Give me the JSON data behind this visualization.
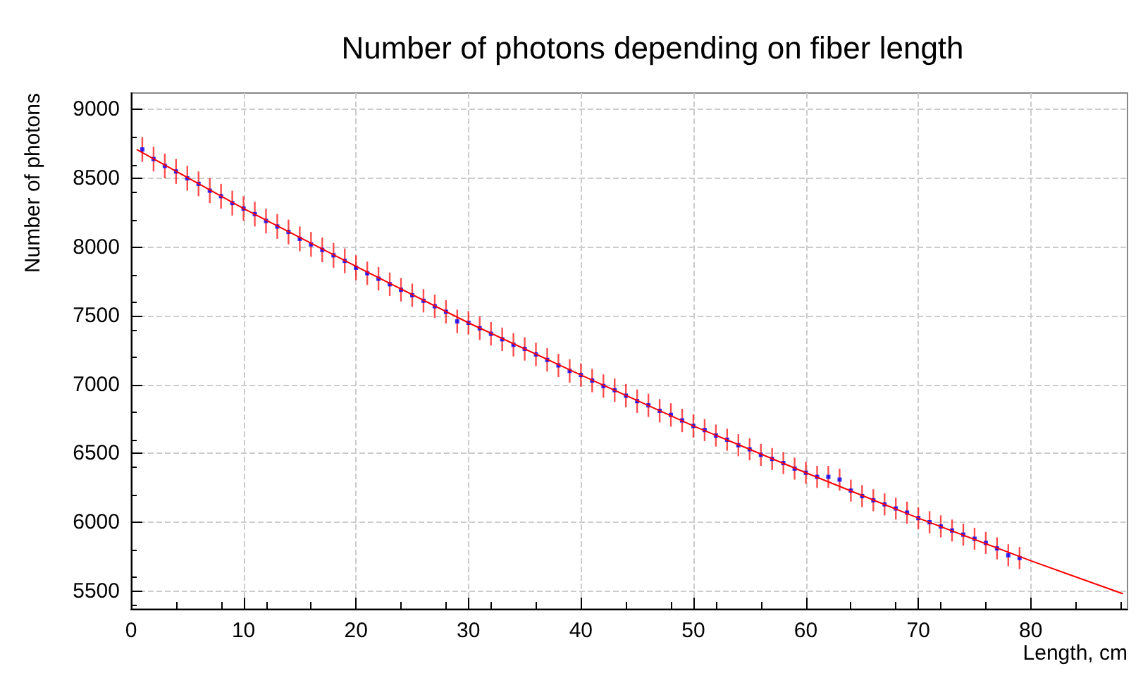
{
  "chart_data": {
    "type": "scatter",
    "title": "Number of photons depending on fiber length",
    "xlabel": "Length, cm",
    "ylabel": "Number of photons",
    "xlim": [
      0,
      88.6
    ],
    "xticks": [
      0,
      10,
      20,
      30,
      40,
      50,
      60,
      70,
      80
    ],
    "ylim": [
      5370,
      9120
    ],
    "yticks": [
      5500,
      6000,
      6500,
      7000,
      7500,
      8000,
      8500,
      9000
    ],
    "grid": true,
    "series": [
      {
        "marker": "square",
        "color": "#0000ff",
        "x": [
          1,
          2,
          3,
          4,
          5,
          6,
          7,
          8,
          9,
          10,
          11,
          12,
          13,
          14,
          15,
          16,
          17,
          18,
          19,
          20,
          21,
          22,
          23,
          24,
          25,
          26,
          27,
          28,
          29,
          30,
          31,
          32,
          33,
          34,
          35,
          36,
          37,
          38,
          39,
          40,
          41,
          42,
          43,
          44,
          45,
          46,
          47,
          48,
          49,
          50,
          51,
          52,
          53,
          54,
          55,
          56,
          57,
          58,
          59,
          60,
          61,
          62,
          63,
          64,
          65,
          66,
          67,
          68,
          69,
          70,
          71,
          72,
          73,
          74,
          75,
          76,
          77,
          78,
          79
        ],
        "values": [
          8710,
          8640,
          8590,
          8550,
          8500,
          8460,
          8410,
          8370,
          8320,
          8280,
          8240,
          8190,
          8150,
          8110,
          8060,
          8020,
          7980,
          7940,
          7900,
          7850,
          7810,
          7770,
          7730,
          7690,
          7650,
          7610,
          7570,
          7530,
          7460,
          7450,
          7410,
          7370,
          7330,
          7290,
          7260,
          7220,
          7180,
          7140,
          7100,
          7070,
          7030,
          6990,
          6960,
          6920,
          6880,
          6850,
          6810,
          6780,
          6740,
          6700,
          6670,
          6630,
          6600,
          6560,
          6530,
          6490,
          6460,
          6430,
          6390,
          6360,
          6330,
          6330,
          6310,
          6230,
          6190,
          6160,
          6130,
          6100,
          6070,
          6030,
          6000,
          5970,
          5940,
          5910,
          5880,
          5850,
          5810,
          5760,
          5740
        ],
        "errors": [
          90,
          90,
          90,
          90,
          90,
          90,
          90,
          90,
          90,
          90,
          90,
          90,
          90,
          90,
          90,
          90,
          90,
          90,
          90,
          90,
          85,
          85,
          85,
          85,
          85,
          85,
          85,
          85,
          85,
          85,
          85,
          85,
          85,
          85,
          85,
          85,
          85,
          85,
          85,
          85,
          85,
          85,
          85,
          85,
          85,
          85,
          85,
          85,
          85,
          85,
          80,
          80,
          80,
          80,
          80,
          80,
          80,
          80,
          80,
          80,
          80,
          80,
          80,
          80,
          80,
          80,
          80,
          80,
          80,
          80,
          80,
          80,
          80,
          80,
          80,
          80,
          80,
          80,
          80
        ]
      },
      {
        "type": "line",
        "marker": "none",
        "line_style": "solid",
        "color": "#ff0000",
        "x": [
          0.5,
          10,
          20,
          30,
          40,
          50,
          60,
          70,
          80,
          88.2
        ],
        "values": [
          8710,
          8280,
          7860,
          7450,
          7070,
          6700,
          6360,
          6030,
          5720,
          5480
        ]
      }
    ]
  }
}
